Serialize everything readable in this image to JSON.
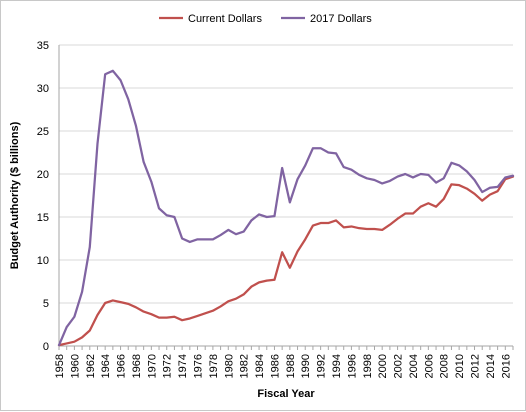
{
  "chart_data": {
    "type": "line",
    "xlabel": "Fiscal Year",
    "ylabel": "Budget Authority ($ billions)",
    "xlim": [
      1958,
      2017
    ],
    "ylim": [
      0,
      35
    ],
    "yticks": [
      0,
      5,
      10,
      15,
      20,
      25,
      30,
      35
    ],
    "xticks": [
      1958,
      1960,
      1962,
      1964,
      1966,
      1968,
      1970,
      1972,
      1974,
      1976,
      1978,
      1980,
      1982,
      1984,
      1986,
      1988,
      1990,
      1992,
      1994,
      1996,
      1998,
      2000,
      2002,
      2004,
      2006,
      2008,
      2010,
      2012,
      2014,
      2016
    ],
    "grid": "horizontal",
    "legend_position": "top",
    "x": [
      1958,
      1959,
      1960,
      1961,
      1962,
      1963,
      1964,
      1965,
      1966,
      1967,
      1968,
      1969,
      1970,
      1971,
      1972,
      1973,
      1974,
      1975,
      1976,
      1977,
      1978,
      1979,
      1980,
      1981,
      1982,
      1983,
      1984,
      1985,
      1986,
      1987,
      1988,
      1989,
      1990,
      1991,
      1992,
      1993,
      1994,
      1995,
      1996,
      1997,
      1998,
      1999,
      2000,
      2001,
      2002,
      2003,
      2004,
      2005,
      2006,
      2007,
      2008,
      2009,
      2010,
      2011,
      2012,
      2013,
      2014,
      2015,
      2016,
      2017
    ],
    "series": [
      {
        "name": "Current Dollars",
        "color": "#c0504d",
        "values": [
          0.1,
          0.3,
          0.5,
          1.0,
          1.8,
          3.6,
          5.0,
          5.3,
          5.1,
          4.9,
          4.5,
          4.0,
          3.7,
          3.3,
          3.3,
          3.4,
          3.0,
          3.2,
          3.5,
          3.8,
          4.1,
          4.6,
          5.2,
          5.5,
          6.0,
          6.9,
          7.4,
          7.6,
          7.7,
          10.9,
          9.1,
          11.0,
          12.4,
          14.0,
          14.3,
          14.3,
          14.6,
          13.8,
          13.9,
          13.7,
          13.6,
          13.6,
          13.5,
          14.1,
          14.8,
          15.4,
          15.4,
          16.2,
          16.6,
          16.2,
          17.1,
          18.8,
          18.7,
          18.3,
          17.7,
          16.9,
          17.6,
          18.0,
          19.4,
          19.7
        ]
      },
      {
        "name": "2017 Dollars",
        "color": "#8064a2",
        "values": [
          0.1,
          2.2,
          3.4,
          6.3,
          11.5,
          23.5,
          31.6,
          32.0,
          30.9,
          28.7,
          25.6,
          21.4,
          19.1,
          16.0,
          15.2,
          15.0,
          12.5,
          12.1,
          12.4,
          12.4,
          12.4,
          12.9,
          13.5,
          13.0,
          13.3,
          14.6,
          15.3,
          15.0,
          15.1,
          20.7,
          16.7,
          19.4,
          21.0,
          23.0,
          23.0,
          22.5,
          22.4,
          20.8,
          20.5,
          19.9,
          19.5,
          19.3,
          18.9,
          19.2,
          19.7,
          20.0,
          19.6,
          20.0,
          19.9,
          19.0,
          19.5,
          21.3,
          21.0,
          20.3,
          19.3,
          17.9,
          18.4,
          18.5,
          19.6,
          19.8
        ]
      }
    ]
  }
}
